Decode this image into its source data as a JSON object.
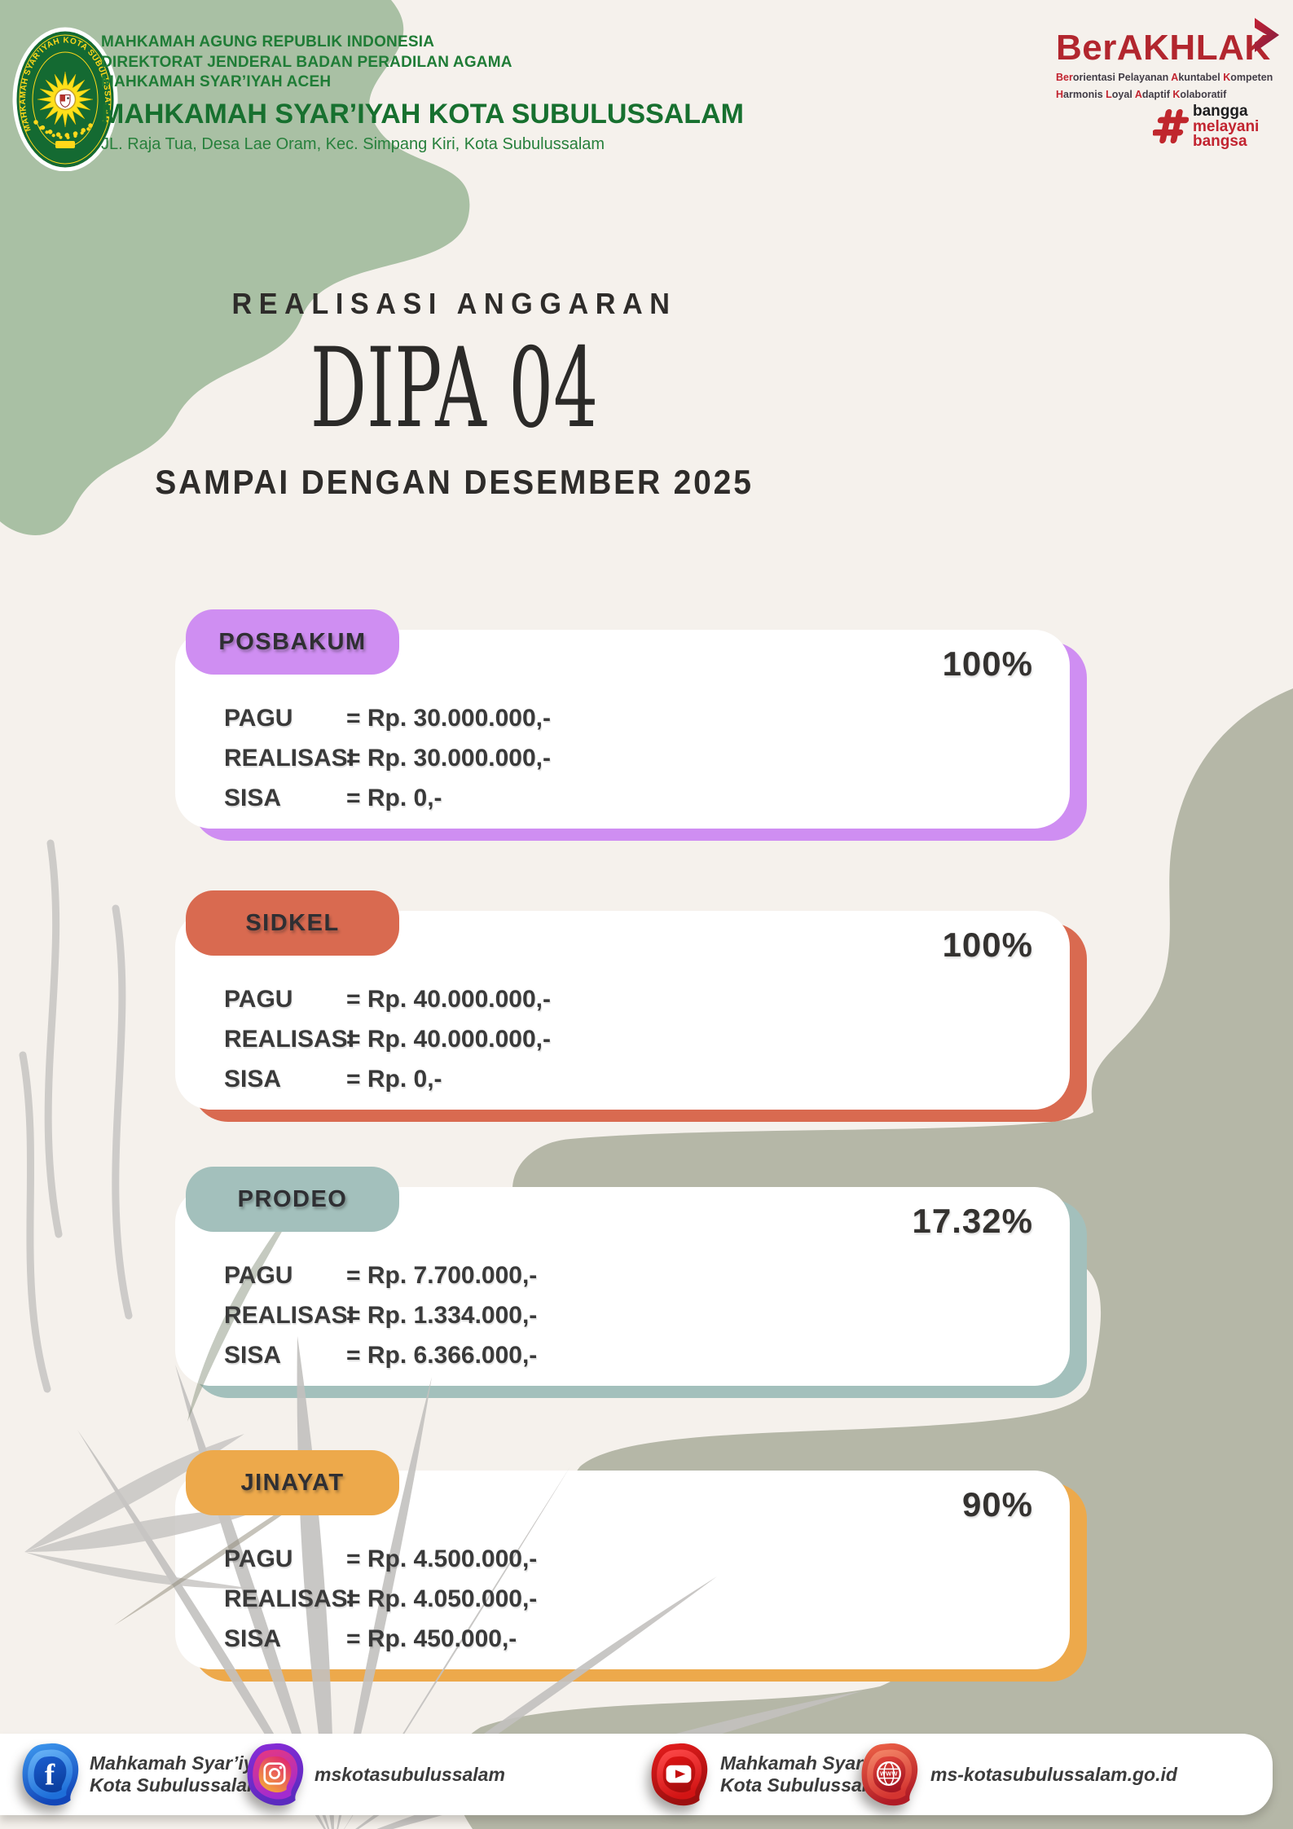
{
  "header": {
    "lines": [
      "MAHKAMAH AGUNG REPUBLIK INDONESIA",
      "DIREKTORAT JENDERAL BADAN PERADILAN AGAMA",
      "MAHKAMAH SYAR’IYAH ACEH"
    ],
    "org_name": "MAHKAMAH SYAR’IYAH KOTA SUBULUSSALAM",
    "address": "JL. Raja Tua, Desa Lae Oram, Kec. Simpang Kiri, Kota Subulussalam",
    "emblem_ring_text": "MAHKAMAH SYAR’IYAH KOTA SUBULUSSALAM",
    "berakhlak": {
      "title": "BerAKHLAK",
      "subtitle1": [
        {
          "text": "Ber",
          "red": true
        },
        {
          "text": "orientasi ",
          "red": false
        },
        {
          "text": "Pelayanan ",
          "red": false
        },
        {
          "text": "A",
          "red": true
        },
        {
          "text": "kuntabel ",
          "red": false
        },
        {
          "text": "K",
          "red": true
        },
        {
          "text": "ompeten",
          "red": false
        }
      ],
      "subtitle2": [
        {
          "text": "H",
          "red": true
        },
        {
          "text": "armonis ",
          "red": false
        },
        {
          "text": "L",
          "red": true
        },
        {
          "text": "oyal ",
          "red": false
        },
        {
          "text": "A",
          "red": true
        },
        {
          "text": "daptif ",
          "red": false
        },
        {
          "text": "K",
          "red": true
        },
        {
          "text": "olaboratif",
          "red": false
        }
      ],
      "hashtag_words": [
        {
          "text": "bangga",
          "red": false
        },
        {
          "text": "melayani",
          "red": true
        },
        {
          "text": "bangsa",
          "red": true
        }
      ]
    }
  },
  "title": {
    "kicker": "REALISASI ANGGARAN",
    "main": "DIPA 04",
    "subtitle": "SAMPAI DENGAN DESEMBER 2025"
  },
  "cards": [
    {
      "name": "POSBAKUM",
      "color": "#cf8ef2",
      "percent": "100%",
      "rows": [
        {
          "label": "PAGU",
          "value": "= Rp. 30.000.000,-"
        },
        {
          "label": "REALISASI",
          "value": "= Rp. 30.000.000,-"
        },
        {
          "label": "SISA",
          "value": "= Rp. 0,-"
        }
      ]
    },
    {
      "name": "SIDKEL",
      "color": "#d96a50",
      "percent": "100%",
      "rows": [
        {
          "label": "PAGU",
          "value": "= Rp. 40.000.000,-"
        },
        {
          "label": "REALISASI",
          "value": "= Rp. 40.000.000,-"
        },
        {
          "label": "SISA",
          "value": "= Rp. 0,-"
        }
      ]
    },
    {
      "name": "PRODEO",
      "color": "#a3c0bc",
      "percent": "17.32%",
      "rows": [
        {
          "label": "PAGU",
          "value": "= Rp. 7.700.000,-"
        },
        {
          "label": "REALISASI",
          "value": "= Rp. 1.334.000,-"
        },
        {
          "label": "SISA",
          "value": "= Rp. 6.366.000,-"
        }
      ]
    },
    {
      "name": "JINAYAT",
      "color": "#eda94b",
      "percent": "90%",
      "rows": [
        {
          "label": "PAGU",
          "value": "= Rp. 4.500.000,-"
        },
        {
          "label": "REALISASI",
          "value": "= Rp. 4.050.000,-"
        },
        {
          "label": "SISA",
          "value": "= Rp. 450.000,-"
        }
      ]
    }
  ],
  "footer": {
    "items": [
      {
        "platform": "facebook",
        "lines": [
          "Mahkamah Syar’iyah",
          "Kota Subulussalam"
        ]
      },
      {
        "platform": "instagram",
        "lines": [
          "mskotasubulussalam"
        ]
      },
      {
        "platform": "youtube",
        "lines": [
          "Mahkamah Syar’iyah",
          "Kota Subulussalam"
        ]
      },
      {
        "platform": "website",
        "lines": [
          "ms-kotasubulussalam.go.id"
        ]
      }
    ]
  },
  "colors": {
    "page_bg": "#f5f1ec",
    "sage": "#a9c0a4",
    "olive": "#b5b7a7",
    "header_green": "#1f7c36",
    "accent_red": "#b2262e",
    "text_dark": "#3a3a3a"
  }
}
